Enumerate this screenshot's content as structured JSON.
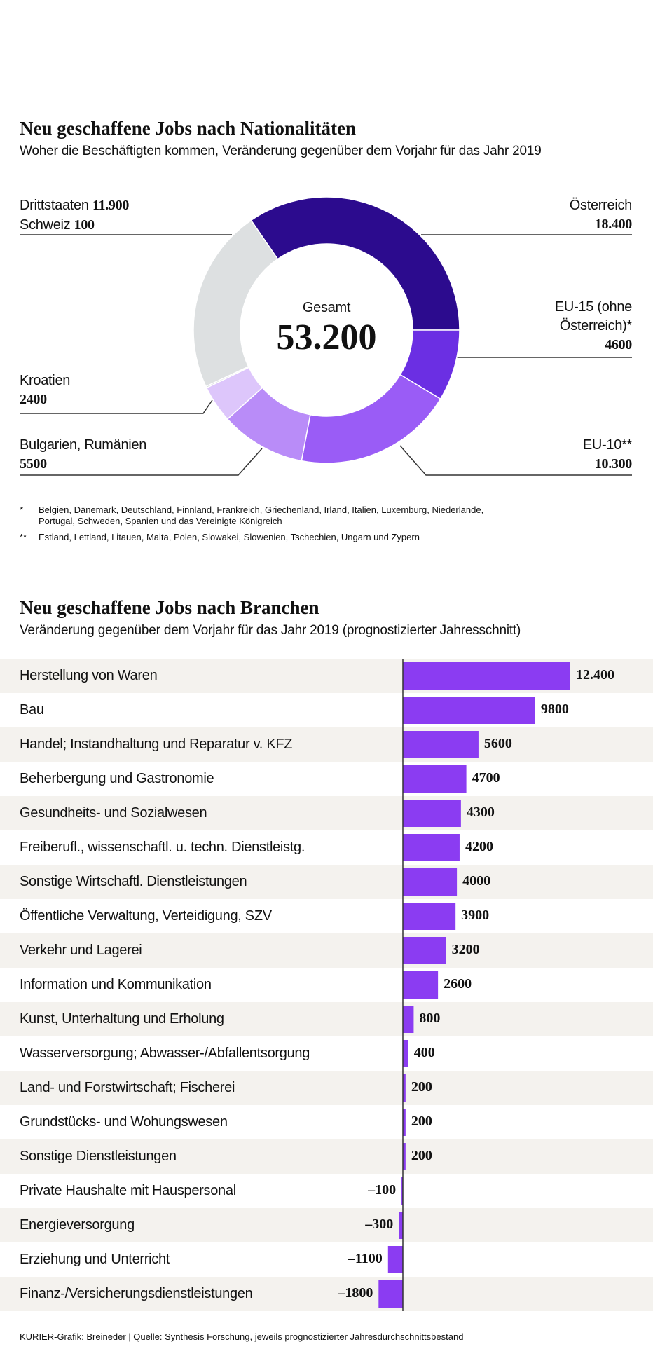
{
  "chart_data": [
    {
      "type": "pie",
      "title": "Neu geschaffene Jobs nach Nationalitäten",
      "subtitle": "Woher die Beschäftigten kommen, Veränderung gegenüber dem Vorjahr für das Jahr 2019",
      "center_label": "Gesamt",
      "center_value": "53.200",
      "categories": [
        "Österreich",
        "EU-15 (ohne Österreich)*",
        "EU-10**",
        "Bulgarien, Rumänien",
        "Kroatien",
        "Schweiz",
        "Drittstaaten"
      ],
      "values": [
        18400,
        4600,
        10300,
        5500,
        2400,
        100,
        11900
      ],
      "value_labels": [
        "18.400",
        "4600",
        "10.300",
        "5500",
        "2400",
        "100",
        "11.900"
      ],
      "colors": [
        "#2c0b8e",
        "#6b2fe3",
        "#9a5cf6",
        "#b98cf8",
        "#ddc6fb",
        "#d2d6d8",
        "#dde0e1"
      ],
      "notes": [
        {
          "mark": "*",
          "text": "Belgien, Dänemark, Deutschland, Finnland, Frankreich, Griechenland, Irland, Italien, Luxemburg, Niederlande, Portugal, Schweden, Spanien und das Vereinigte Königreich"
        },
        {
          "mark": "**",
          "text": "Estland, Lettland, Litauen, Malta, Polen, Slowakei, Slowenien, Tschechien, Ungarn und Zypern"
        }
      ]
    },
    {
      "type": "bar",
      "title": "Neu geschaffene Jobs nach Branchen",
      "subtitle": "Veränderung gegenüber dem Vorjahr für das Jahr 2019 (prognostizierter Jahresschnitt)",
      "categories": [
        "Herstellung von Waren",
        "Bau",
        "Handel; Instandhaltung und Reparatur v. KFZ",
        "Beherbergung und Gastronomie",
        "Gesundheits- und Sozialwesen",
        "Freiberufl., wissenschaftl. u. techn. Dienstleistg.",
        "Sonstige Wirtschaftl. Dienstleistungen",
        "Öffentliche Verwaltung, Verteidigung, SZV",
        "Verkehr und Lagerei",
        "Information und Kommunikation",
        "Kunst, Unterhaltung und Erholung",
        "Wasserversorgung; Abwasser-/Abfallentsorgung",
        "Land- und Forstwirtschaft; Fischerei",
        "Grundstücks- und Wohungswesen",
        "Sonstige Dienstleistungen",
        "Private Haushalte mit Hauspersonal",
        "Energieversorgung",
        "Erziehung und Unterricht",
        "Finanz-/Versicherungsdienstleistungen"
      ],
      "values": [
        12400,
        9800,
        5600,
        4700,
        4300,
        4200,
        4000,
        3900,
        3200,
        2600,
        800,
        400,
        200,
        200,
        200,
        -100,
        -300,
        -1100,
        -1800
      ],
      "value_labels": [
        "12.400",
        "9800",
        "5600",
        "4700",
        "4300",
        "4200",
        "4000",
        "3900",
        "3200",
        "2600",
        "800",
        "400",
        "200",
        "200",
        "200",
        "–100",
        "–300",
        "–1100",
        "–1800"
      ],
      "color": "#8b3cf2"
    }
  ],
  "source": "KURIER-Grafik: Breineder | Quelle: Synthesis Forschung, jeweils prognostizierter Jahresdurchschnittsbestand"
}
